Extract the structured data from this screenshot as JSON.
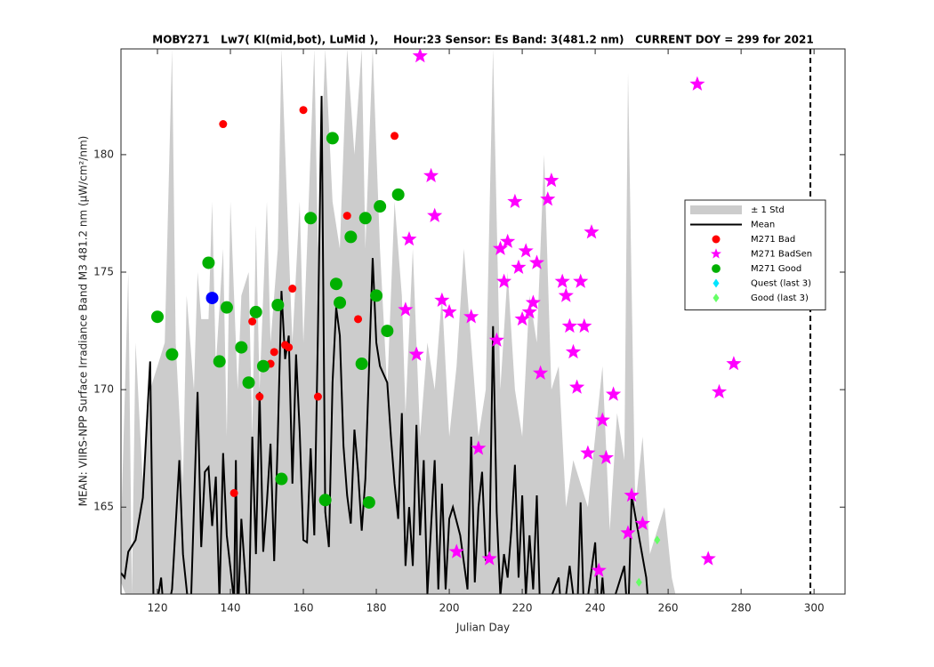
{
  "chart_data": {
    "type": "scatter",
    "title": "MOBY271   Lw7( Kl(mid,bot), LuMid ),    Hour:23 Sensor: Es Band: 3(481.2 nm)   CURRENT DOY = 299 for 2021",
    "x_label": "Julian Day",
    "y_label": "MEAN: VIIRS-NPP Surface Irradiance Band M3 481.2 nm (µW/cm²/nm)",
    "xlim": [
      110,
      308.5
    ],
    "ylim": [
      161.3,
      184.5
    ],
    "xticks": [
      120,
      140,
      160,
      180,
      200,
      220,
      240,
      260,
      280,
      300
    ],
    "yticks": [
      165,
      170,
      175,
      180
    ],
    "current_doy": 299,
    "legend": "east",
    "series": [
      {
        "name": "± 1 Std",
        "kind": "band",
        "color": "#cccccc",
        "x": [
          110,
          112,
          113,
          114,
          116,
          118,
          120,
          122,
          124,
          125,
          127,
          128,
          130,
          131,
          132,
          134,
          135,
          136,
          138,
          139,
          140,
          142,
          143,
          145,
          146,
          147,
          148,
          150,
          151,
          153,
          154,
          156,
          157,
          159,
          160,
          161,
          163,
          164,
          166,
          168,
          170,
          172,
          174,
          176,
          177,
          179,
          181,
          183,
          185,
          187,
          188,
          190,
          192,
          194,
          196,
          198,
          200,
          202,
          204,
          206,
          208,
          210,
          212,
          214,
          216,
          218,
          220,
          222,
          224,
          226,
          228,
          230,
          232,
          234,
          236,
          238,
          240,
          242,
          244,
          246,
          248,
          249,
          251,
          253,
          255,
          257,
          259,
          261,
          262
        ],
        "upper": [
          164,
          175,
          161.3,
          172,
          166,
          170,
          171,
          172,
          184.5,
          172,
          166,
          174,
          170,
          175,
          173,
          173,
          178,
          171,
          176,
          168,
          178,
          170,
          174,
          175,
          168,
          177,
          170,
          178,
          172,
          176,
          184.5,
          176,
          172,
          178,
          172,
          176,
          184.5,
          176,
          184.5,
          178,
          176,
          184.5,
          180,
          184.5,
          176,
          184.5,
          176,
          170,
          178,
          174,
          169,
          176,
          168,
          172,
          170,
          174,
          168,
          171,
          176,
          172,
          168,
          170,
          184.5,
          170,
          175,
          170,
          168,
          174,
          172,
          180,
          170,
          171,
          165,
          167,
          166,
          165,
          168,
          171,
          164,
          169,
          167,
          183.5,
          165,
          168,
          163,
          164,
          165,
          162,
          161.3
        ],
        "lower": [
          161.8,
          161,
          160,
          160,
          160,
          160,
          160,
          160,
          160,
          160,
          160,
          160,
          160,
          160,
          160,
          160,
          160,
          160,
          160,
          160,
          160,
          160,
          160,
          160,
          160,
          160,
          160,
          160,
          160,
          160,
          160,
          160,
          160,
          160,
          160,
          160,
          160,
          160,
          160,
          160,
          160,
          160,
          160,
          160,
          160,
          160,
          160,
          160,
          160,
          160,
          160,
          160,
          160,
          160,
          160,
          160,
          160,
          160,
          160,
          160,
          160,
          160,
          160,
          160,
          160,
          160,
          160,
          160,
          160,
          160,
          160,
          160,
          160,
          160,
          160,
          160,
          160,
          160,
          160,
          160,
          160,
          160,
          160,
          160,
          160,
          160,
          160,
          160,
          160
        ]
      },
      {
        "name": "Mean",
        "kind": "line",
        "color": "#000000",
        "x": [
          110,
          111,
          112,
          114,
          116,
          118,
          119,
          121,
          122,
          124,
          126,
          127,
          129,
          131,
          132,
          133,
          134,
          135,
          136,
          137,
          138,
          139,
          141,
          141.5,
          142,
          143,
          145,
          146,
          147,
          148,
          149,
          150,
          151,
          152,
          153,
          154,
          155,
          156,
          157,
          158,
          159,
          160,
          161,
          162,
          163,
          164,
          165,
          166,
          167,
          168,
          169,
          170,
          171,
          172,
          173,
          174,
          175,
          176,
          177,
          179,
          180,
          181,
          183,
          184,
          185,
          186,
          187,
          188,
          189,
          190,
          191,
          192,
          193,
          194,
          196,
          197,
          198,
          199,
          200,
          201,
          203,
          205,
          206,
          207,
          208,
          209,
          210,
          211,
          212,
          213,
          214,
          215,
          216,
          217,
          218,
          219,
          220,
          221,
          222,
          223,
          224,
          225,
          230,
          231,
          233,
          235,
          236,
          237,
          240,
          241,
          242,
          243,
          248,
          249,
          250,
          254,
          255
        ],
        "values": [
          162.2,
          162.0,
          163.1,
          163.6,
          165.4,
          171.2,
          160,
          162,
          160,
          161.5,
          167.0,
          163.0,
          160,
          169.9,
          163.3,
          166.5,
          166.7,
          164.2,
          166.3,
          161.0,
          167.3,
          163.8,
          161,
          167,
          160,
          164.5,
          160,
          168.0,
          163,
          169.9,
          163.1,
          165.2,
          167.7,
          162.7,
          168.0,
          174.2,
          171.3,
          172.3,
          166.0,
          171.5,
          168.2,
          163.6,
          163.5,
          167.5,
          163.8,
          172.5,
          182.5,
          164.8,
          163.3,
          170.3,
          173.5,
          172.3,
          167.6,
          165.5,
          164.3,
          168.3,
          166.5,
          164.0,
          166.2,
          175.6,
          172.0,
          171.0,
          170.3,
          168.0,
          166.0,
          164.5,
          169.0,
          162.5,
          165.0,
          162.5,
          168.5,
          163.8,
          167.0,
          161.3,
          167.0,
          161.5,
          166.0,
          161.5,
          164.5,
          165.0,
          163.8,
          161.5,
          168.0,
          161.8,
          165.0,
          166.5,
          162.8,
          163.0,
          172.7,
          164.8,
          161.2,
          163.0,
          162.0,
          164.0,
          166.8,
          162.0,
          165.5,
          161.2,
          163.8,
          161.5,
          165.5,
          160,
          162,
          160,
          162.5,
          160,
          165.2,
          160,
          163.5,
          160,
          162,
          160,
          162.5,
          160,
          165.5,
          162.0,
          160
        ]
      },
      {
        "name": "M271 Bad",
        "kind": "marker",
        "marker": "o",
        "color": "#ff0000",
        "x": [
          138,
          141,
          146,
          148,
          151,
          152,
          155,
          156,
          157,
          160,
          164,
          172,
          175,
          185
        ],
        "values": [
          181.3,
          165.6,
          172.9,
          169.7,
          171.1,
          171.6,
          171.9,
          171.8,
          174.3,
          181.9,
          169.7,
          177.4,
          173.0,
          180.8
        ]
      },
      {
        "name": "M271 BadSen",
        "kind": "marker",
        "marker": "*",
        "color": "#ff00ff",
        "x": [
          192,
          188,
          189,
          191,
          195,
          196,
          198,
          200,
          202,
          206,
          208,
          211,
          213,
          214,
          215,
          216,
          218,
          219,
          220,
          221,
          222,
          223,
          224,
          225,
          227,
          228,
          231,
          232,
          233,
          234,
          235,
          236,
          237,
          238,
          239,
          241,
          242,
          243,
          245,
          249,
          250,
          253,
          268,
          271,
          274,
          278
        ],
        "values": [
          184.2,
          173.4,
          176.4,
          171.5,
          179.1,
          177.4,
          173.8,
          173.3,
          163.1,
          173.1,
          167.5,
          162.8,
          172.1,
          176.0,
          174.6,
          176.3,
          178.0,
          175.2,
          173.0,
          175.9,
          173.3,
          173.7,
          175.4,
          170.7,
          178.1,
          178.9,
          174.6,
          174.0,
          172.7,
          171.6,
          170.1,
          174.6,
          172.7,
          167.3,
          176.7,
          162.3,
          168.7,
          167.1,
          169.8,
          163.9,
          165.5,
          164.3,
          183.0,
          162.8,
          169.9,
          171.1
        ]
      },
      {
        "name": "M271 Good",
        "kind": "marker",
        "marker": "O",
        "color": "#00b000",
        "x": [
          120,
          124,
          134,
          137,
          139,
          143,
          145,
          147,
          149,
          153,
          154,
          162,
          166,
          168,
          169,
          170,
          173,
          176,
          177,
          178,
          180,
          181,
          183,
          186
        ],
        "values": [
          173.1,
          171.5,
          175.4,
          171.2,
          173.5,
          171.8,
          170.3,
          173.3,
          171.0,
          173.6,
          166.2,
          177.3,
          165.3,
          180.7,
          174.5,
          173.7,
          176.5,
          171.1,
          177.3,
          165.2,
          174.0,
          177.8,
          172.5,
          178.3
        ]
      },
      {
        "name": "Quest (last 3)",
        "kind": "marker",
        "marker": "d",
        "color": "#00e5ff",
        "x": [],
        "values": []
      },
      {
        "name": "Good (last 3)",
        "kind": "marker",
        "marker": "d",
        "color": "#66ff66",
        "x": [
          252,
          257
        ],
        "values": [
          161.8,
          163.6
        ]
      },
      {
        "kind": "marker",
        "marker": "O",
        "color": "#0000ff",
        "x": [
          135
        ],
        "values": [
          173.9
        ]
      }
    ]
  }
}
